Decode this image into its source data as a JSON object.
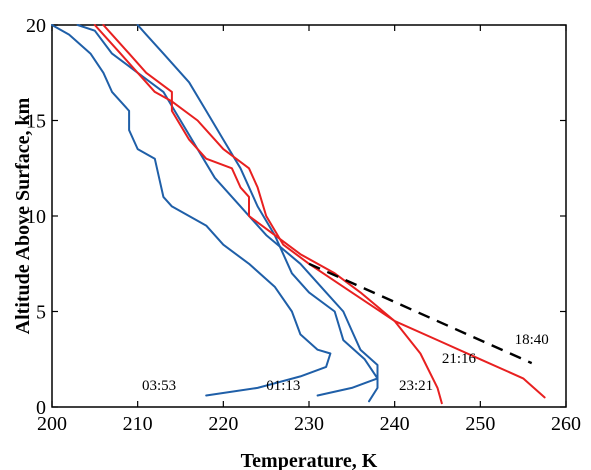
{
  "chart_data": {
    "type": "line",
    "title": "",
    "xlabel": "Temperature, K",
    "ylabel": "Altitude Above Surface, km",
    "xlim": [
      200,
      260
    ],
    "ylim": [
      0,
      20
    ],
    "xticks": [
      200,
      210,
      220,
      230,
      240,
      250,
      260
    ],
    "yticks": [
      0,
      5,
      10,
      15,
      20
    ],
    "grid": false,
    "legend": "none",
    "series": [
      {
        "name": "03:53",
        "color": "#1f5fa8",
        "style": "solid",
        "points": [
          [
            218,
            0.6
          ],
          [
            224,
            1.0
          ],
          [
            229,
            1.6
          ],
          [
            232,
            2.1
          ],
          [
            232.5,
            2.8
          ],
          [
            231,
            3.0
          ],
          [
            229,
            3.8
          ],
          [
            228,
            5.0
          ],
          [
            226,
            6.3
          ],
          [
            223,
            7.5
          ],
          [
            220,
            8.5
          ],
          [
            218,
            9.5
          ],
          [
            214,
            10.5
          ],
          [
            213,
            11.0
          ],
          [
            212.5,
            12.0
          ],
          [
            212,
            13.0
          ],
          [
            210,
            13.5
          ],
          [
            209,
            14.5
          ],
          [
            209,
            15.5
          ],
          [
            207,
            16.5
          ],
          [
            206,
            17.5
          ],
          [
            204.5,
            18.5
          ],
          [
            202,
            19.5
          ],
          [
            200,
            20
          ]
        ]
      },
      {
        "name": "01:13",
        "color": "#1f5fa8",
        "style": "solid",
        "points": [
          [
            231,
            0.6
          ],
          [
            235,
            1.0
          ],
          [
            238,
            1.5
          ],
          [
            238,
            2.2
          ],
          [
            236,
            3.0
          ],
          [
            235,
            4.0
          ],
          [
            234,
            5.0
          ],
          [
            232,
            6.0
          ],
          [
            229,
            7.5
          ],
          [
            225,
            9.0
          ],
          [
            222,
            10.5
          ],
          [
            219,
            12.0
          ],
          [
            217,
            13.5
          ],
          [
            215,
            15.0
          ],
          [
            213,
            16.5
          ],
          [
            210,
            17.5
          ],
          [
            207,
            18.5
          ],
          [
            205,
            19.7
          ],
          [
            203,
            20
          ]
        ]
      },
      {
        "name": "23:21",
        "color": "#1f5fa8",
        "style": "solid",
        "points": [
          [
            237,
            0.3
          ],
          [
            238,
            1.0
          ],
          [
            238,
            1.5
          ],
          [
            236.5,
            2.5
          ],
          [
            234,
            3.5
          ],
          [
            233,
            5.0
          ],
          [
            230,
            6.0
          ],
          [
            228,
            7.0
          ],
          [
            227,
            8.0
          ],
          [
            226,
            9.0
          ],
          [
            224,
            10.5
          ],
          [
            222,
            12.5
          ],
          [
            220,
            14.0
          ],
          [
            218,
            15.5
          ],
          [
            216,
            17.0
          ],
          [
            213,
            18.5
          ],
          [
            211,
            19.5
          ],
          [
            210,
            20
          ]
        ]
      },
      {
        "name": "21:16",
        "color": "#e82020",
        "style": "solid",
        "points": [
          [
            245.5,
            0.2
          ],
          [
            245,
            1.0
          ],
          [
            243,
            2.8
          ],
          [
            240,
            4.5
          ],
          [
            236,
            6.0
          ],
          [
            233,
            7.0
          ],
          [
            229,
            8.0
          ],
          [
            226,
            9.0
          ],
          [
            223,
            10.0
          ],
          [
            223,
            11.0
          ],
          [
            222,
            11.5
          ],
          [
            221,
            12.5
          ],
          [
            218,
            13.0
          ],
          [
            216,
            14.0
          ],
          [
            214,
            15.5
          ],
          [
            214,
            16.5
          ],
          [
            211,
            17.5
          ],
          [
            209,
            18.5
          ],
          [
            207,
            19.5
          ],
          [
            206,
            20
          ]
        ]
      },
      {
        "name": "18:40",
        "color": "#e82020",
        "style": "solid",
        "points": [
          [
            257.5,
            0.5
          ],
          [
            255,
            1.5
          ],
          [
            250,
            2.5
          ],
          [
            245,
            3.5
          ],
          [
            240,
            4.5
          ],
          [
            235,
            6.0
          ],
          [
            230,
            7.5
          ],
          [
            227,
            8.5
          ],
          [
            225,
            10.0
          ],
          [
            224,
            11.5
          ],
          [
            223,
            12.5
          ],
          [
            220,
            13.5
          ],
          [
            217,
            15.0
          ],
          [
            214,
            16.0
          ],
          [
            212,
            16.5
          ],
          [
            210,
            17.5
          ],
          [
            208,
            18.5
          ],
          [
            206,
            19.5
          ],
          [
            205,
            20
          ]
        ]
      },
      {
        "name": "",
        "color": "#000000",
        "style": "dashed",
        "points": [
          [
            230,
            7.5
          ],
          [
            256,
            2.3
          ]
        ]
      }
    ],
    "annotations": [
      {
        "text": "03:53",
        "x": 212.5,
        "y": 0.9
      },
      {
        "text": "01:13",
        "x": 227,
        "y": 0.9
      },
      {
        "text": "23:21",
        "x": 242.5,
        "y": 0.9
      },
      {
        "text": "21:16",
        "x": 247.5,
        "y": 2.3
      },
      {
        "text": "18:40",
        "x": 256,
        "y": 3.3
      }
    ]
  }
}
